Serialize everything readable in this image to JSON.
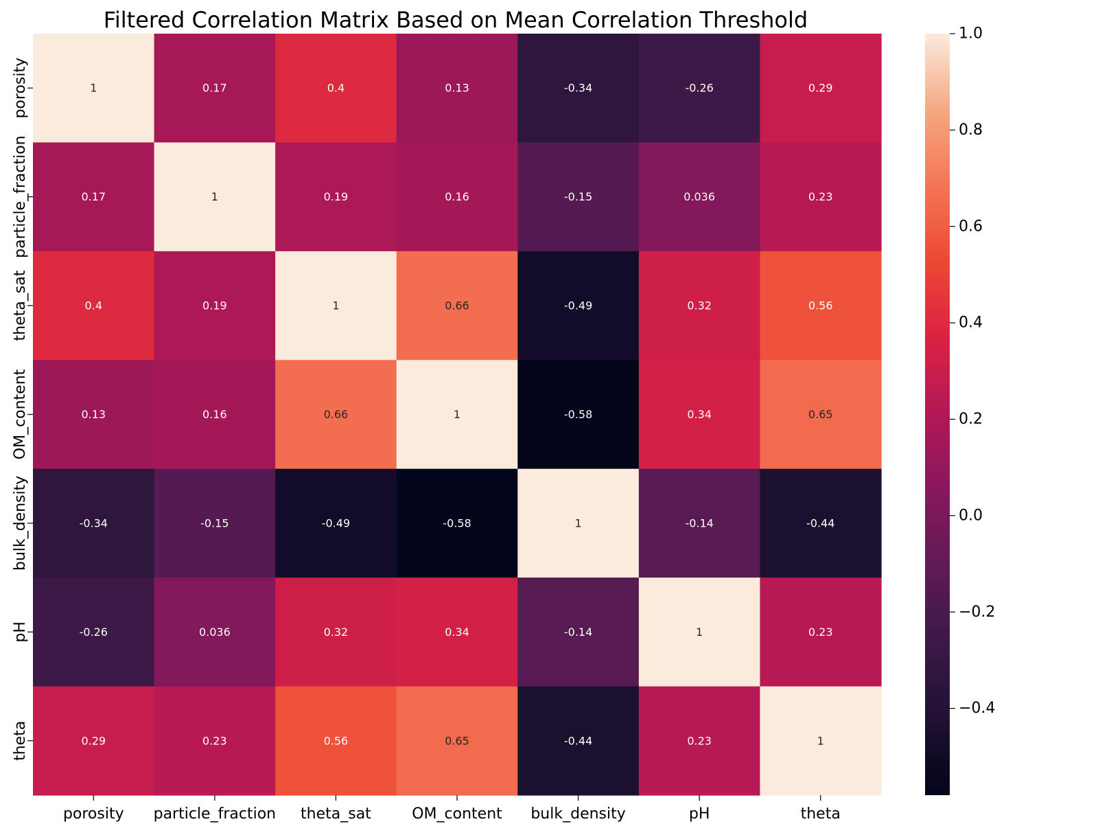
{
  "chart_data": {
    "type": "heatmap",
    "title": "Filtered Correlation Matrix Based on Mean Correlation Threshold",
    "xlabel": "",
    "ylabel": "",
    "x_categories": [
      "porosity",
      "particle_fraction",
      "theta_sat",
      "OM_content",
      "bulk_density",
      "pH",
      "theta"
    ],
    "y_categories": [
      "porosity",
      "particle_fraction",
      "theta_sat",
      "OM_content",
      "bulk_density",
      "pH",
      "theta"
    ],
    "values": [
      [
        1,
        0.17,
        0.4,
        0.13,
        -0.34,
        -0.26,
        0.29
      ],
      [
        0.17,
        1,
        0.19,
        0.16,
        -0.15,
        0.036,
        0.23
      ],
      [
        0.4,
        0.19,
        1,
        0.66,
        -0.49,
        0.32,
        0.56
      ],
      [
        0.13,
        0.16,
        0.66,
        1,
        -0.58,
        0.34,
        0.65
      ],
      [
        -0.34,
        -0.15,
        -0.49,
        -0.58,
        1,
        -0.14,
        -0.44
      ],
      [
        -0.26,
        0.036,
        0.32,
        0.34,
        -0.14,
        1,
        0.23
      ],
      [
        0.29,
        0.23,
        0.56,
        0.65,
        -0.44,
        0.23,
        1
      ]
    ],
    "annotations": [
      [
        "1",
        "0.17",
        "0.4",
        "0.13",
        "-0.34",
        "-0.26",
        "0.29"
      ],
      [
        "0.17",
        "1",
        "0.19",
        "0.16",
        "-0.15",
        "0.036",
        "0.23"
      ],
      [
        "0.4",
        "0.19",
        "1",
        "0.66",
        "-0.49",
        "0.32",
        "0.56"
      ],
      [
        "0.13",
        "0.16",
        "0.66",
        "1",
        "-0.58",
        "0.34",
        "0.65"
      ],
      [
        "-0.34",
        "-0.15",
        "-0.49",
        "-0.58",
        "1",
        "-0.14",
        "-0.44"
      ],
      [
        "-0.26",
        "0.036",
        "0.32",
        "0.34",
        "-0.14",
        "1",
        "0.23"
      ],
      [
        "0.29",
        "0.23",
        "0.56",
        "0.65",
        "-0.44",
        "0.23",
        "1"
      ]
    ],
    "colormap": "rocket",
    "vmin": -0.58,
    "vmax": 1,
    "colorbar": {
      "ticks": [
        1.0,
        0.8,
        0.6,
        0.4,
        0.2,
        0.0,
        -0.2,
        -0.4
      ],
      "tick_labels": [
        "1.0",
        "0.8",
        "0.6",
        "0.4",
        "0.2",
        "0.0",
        "−0.2",
        "−0.4"
      ],
      "placement": "right"
    }
  }
}
